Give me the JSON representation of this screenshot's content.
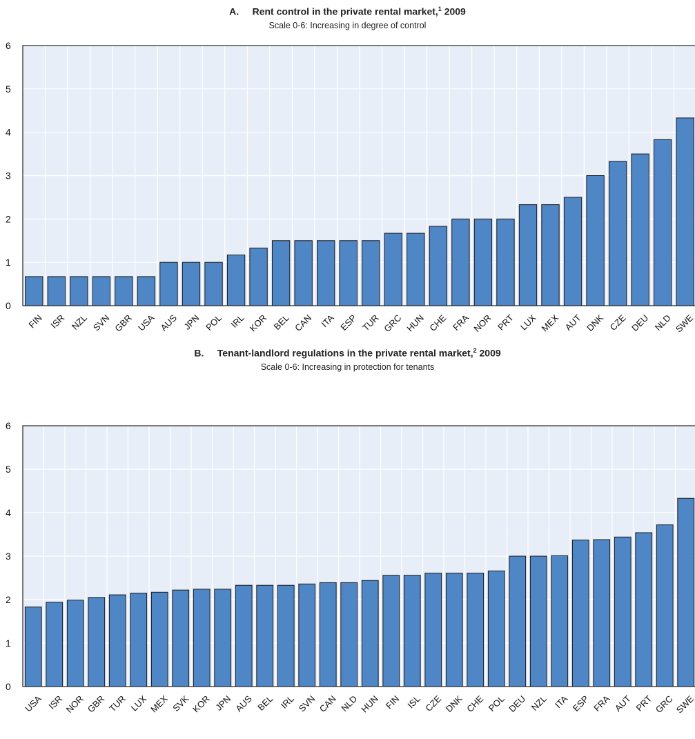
{
  "chart_data": [
    {
      "type": "bar",
      "panel_letter": "A.",
      "title": "Rent control in the private rental market,",
      "title_sup": "1",
      "title_year": "2009",
      "subtitle": "Scale 0-6: Increasing in degree  of control",
      "ylim": [
        0,
        6
      ],
      "yticks": [
        "0",
        "1",
        "2",
        "3",
        "4",
        "5",
        "6"
      ],
      "grid": true,
      "bar_color": "#4f86c6",
      "background_color": "#e8eef8",
      "categories": [
        "FIN",
        "ISR",
        "NZL",
        "SVN",
        "GBR",
        "USA",
        "AUS",
        "JPN",
        "POL",
        "IRL",
        "KOR",
        "BEL",
        "CAN",
        "ITA",
        "ESP",
        "TUR",
        "GRC",
        "HUN",
        "CHE",
        "FRA",
        "NOR",
        "PRT",
        "LUX",
        "MEX",
        "AUT",
        "DNK",
        "CZE",
        "DEU",
        "NLD",
        "SWE"
      ],
      "values": [
        0.67,
        0.67,
        0.67,
        0.67,
        0.67,
        0.67,
        1.0,
        1.0,
        1.0,
        1.17,
        1.33,
        1.5,
        1.5,
        1.5,
        1.5,
        1.5,
        1.67,
        1.67,
        1.83,
        2.0,
        2.0,
        2.0,
        2.33,
        2.33,
        2.5,
        3.0,
        3.33,
        3.5,
        3.83,
        4.33
      ]
    },
    {
      "type": "bar",
      "panel_letter": "B.",
      "title": "Tenant-landlord regulations in the private rental market,",
      "title_sup": "2",
      "title_year": "2009",
      "subtitle": "Scale 0-6: Increasing in protection for tenants",
      "ylim": [
        0,
        6
      ],
      "yticks": [
        "0",
        "1",
        "2",
        "3",
        "4",
        "5",
        "6"
      ],
      "grid": true,
      "bar_color": "#4f86c6",
      "background_color": "#e8eef8",
      "categories": [
        "USA",
        "ISR",
        "NOR",
        "GBR",
        "TUR",
        "LUX",
        "MEX",
        "SVK",
        "KOR",
        "JPN",
        "AUS",
        "BEL",
        "IRL",
        "SVN",
        "CAN",
        "NLD",
        "HUN",
        "FIN",
        "ISL",
        "CZE",
        "DNK",
        "CHE",
        "POL",
        "DEU",
        "NZL",
        "ITA",
        "ESP",
        "FRA",
        "AUT",
        "PRT",
        "GRC",
        "SWE"
      ],
      "values": [
        1.83,
        1.94,
        1.99,
        2.05,
        2.11,
        2.15,
        2.17,
        2.22,
        2.24,
        2.24,
        2.33,
        2.33,
        2.33,
        2.36,
        2.39,
        2.39,
        2.44,
        2.56,
        2.56,
        2.61,
        2.61,
        2.61,
        2.66,
        3.0,
        3.0,
        3.01,
        3.37,
        3.38,
        3.44,
        3.54,
        3.72,
        4.33
      ]
    }
  ]
}
